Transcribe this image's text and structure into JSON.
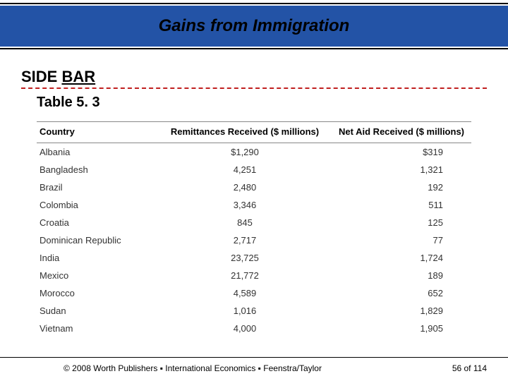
{
  "header": {
    "title": "Gains from Immigration",
    "band_bg": "#2353a6",
    "border_color": "#000000"
  },
  "sidebar_label": {
    "prefix": "SIDE ",
    "underlined": "BAR",
    "underline_color": "#c02020"
  },
  "table": {
    "caption": "Table 5. 3",
    "columns": [
      {
        "key": "country",
        "label": "Country"
      },
      {
        "key": "remit",
        "label": "Remittances Received ($ millions)"
      },
      {
        "key": "aid",
        "label": "Net Aid Received ($ millions)"
      }
    ],
    "rows": [
      {
        "country": "Albania",
        "remit": "$1,290",
        "aid": "$319"
      },
      {
        "country": "Bangladesh",
        "remit": "4,251",
        "aid": "1,321"
      },
      {
        "country": "Brazil",
        "remit": "2,480",
        "aid": "192"
      },
      {
        "country": "Colombia",
        "remit": "3,346",
        "aid": "511"
      },
      {
        "country": "Croatia",
        "remit": "845",
        "aid": "125"
      },
      {
        "country": "Dominican Republic",
        "remit": "2,717",
        "aid": "77"
      },
      {
        "country": "India",
        "remit": "23,725",
        "aid": "1,724"
      },
      {
        "country": "Mexico",
        "remit": "21,772",
        "aid": "189"
      },
      {
        "country": "Morocco",
        "remit": "4,589",
        "aid": "652"
      },
      {
        "country": "Sudan",
        "remit": "1,016",
        "aid": "1,829"
      },
      {
        "country": "Vietnam",
        "remit": "4,000",
        "aid": "1,905"
      }
    ],
    "header_border_color": "#888888",
    "body_text_color": "#333333",
    "font_size_pt": 10
  },
  "footer": {
    "copyright": "© 2008 Worth Publishers ▪ International Economics ▪ Feenstra/Taylor",
    "page_current": 56,
    "page_sep": " of ",
    "page_total": 114
  }
}
